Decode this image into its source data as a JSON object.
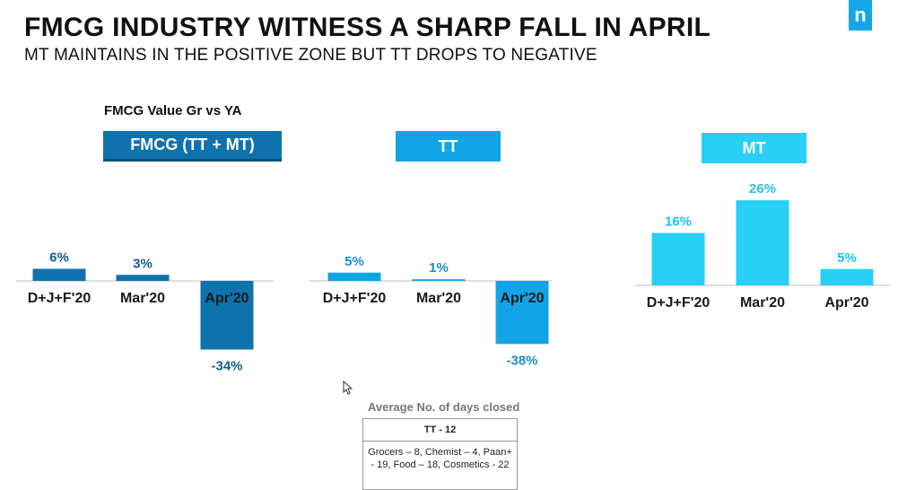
{
  "header": {
    "title": "FMCG INDUSTRY WITNESS A SHARP FALL IN APRIL",
    "subtitle": "MT MAINTAINS IN THE POSITIVE ZONE BUT TT DROPS TO NEGATIVE",
    "logo_glyph": "n"
  },
  "metric_label": "FMCG Value Gr vs YA",
  "colors": {
    "dark_blue": "#0e72ad",
    "mid_blue": "#12a4e6",
    "light_blue": "#27d0f4",
    "dark_text": "#0d5f8e",
    "mid_text": "#1a8fcf",
    "light_text": "#1ec3ec"
  },
  "chart_data": [
    {
      "type": "bar",
      "title": "FMCG (TT + MT)",
      "categories": [
        "D+J+F'20",
        "Mar'20",
        "Apr'20"
      ],
      "values": [
        6,
        3,
        -34
      ],
      "labels": [
        "6%",
        "3%",
        "-34%"
      ]
    },
    {
      "type": "bar",
      "title": "TT",
      "categories": [
        "D+J+F'20",
        "Mar'20",
        "Apr'20"
      ],
      "values": [
        5,
        1,
        -38
      ],
      "labels": [
        "5%",
        "1%",
        "-38%"
      ]
    },
    {
      "type": "bar",
      "title": "MT",
      "categories": [
        "D+J+F'20",
        "Mar'20",
        "Apr'20"
      ],
      "values": [
        16,
        26,
        5
      ],
      "labels": [
        "16%",
        "26%",
        "5%"
      ]
    }
  ],
  "note": {
    "title": "Average No. of days closed",
    "head": "TT - 12",
    "body": "Grocers – 8, Chemist – 4, Paan+ - 19, Food – 18, Cosmetics - 22"
  }
}
